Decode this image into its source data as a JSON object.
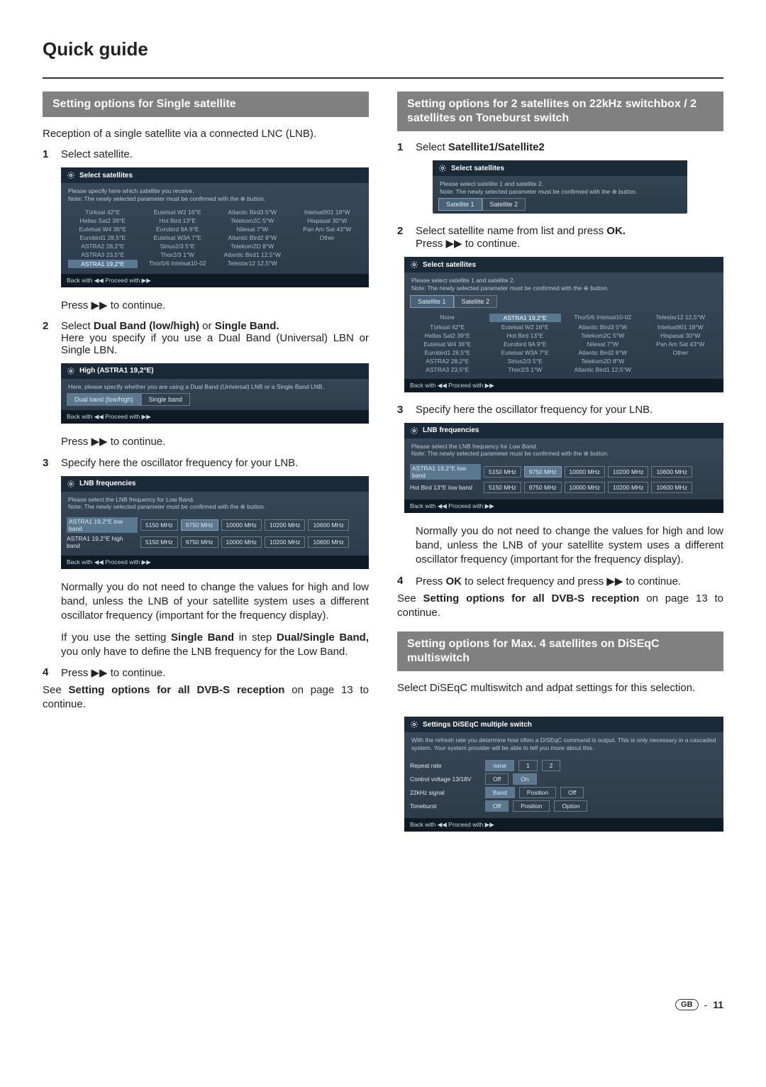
{
  "page": {
    "title": "Quick guide",
    "footer_gb": "GB",
    "footer_page": "11"
  },
  "left": {
    "header": "Setting options for Single satellite",
    "intro": "Reception of a single satellite via a connected LNC (LNB).",
    "s1_num": "1",
    "s1_text": "Select satellite.",
    "sat_panel": {
      "title": "Select satellites",
      "msg1": "Please specify here which satellite you receive.",
      "msg2": "Note: The newly selected parameter must be confirmed with the ⊕ button.",
      "foot": "Back with ◀◀   Proceed with ▶▶",
      "grid": [
        "Türksat 42°E",
        "Eutelsat W2 16°E",
        "Atlantic Bird3 5°W",
        "Intelsat901 18°W",
        "Hellas Sat2 39°E",
        "Hot Bird 13°E",
        "Telekom2C 5°W",
        "Hispasat 30°W",
        "Eutelsat W4 36°E",
        "Eurobird 9A 9°E",
        "Nilesat 7°W",
        "Pan Am Sat 43°W",
        "Eurobird1 28,5°E",
        "Eutelsat W3A 7°E",
        "Atlantic Bird2 8°W",
        "Other",
        "ASTRA2 28,2°E",
        "Sirius2/3 5°E",
        "Telekom2D 8°W",
        "",
        "ASTRA3 23,5°E",
        "Thor2/3 1°W",
        "Atlantic Bird1 12,5°W",
        "",
        "ASTRA1 19,2°E",
        "Thor5/6 Intelsat10-02",
        "Telestar12 12,5°W",
        ""
      ],
      "sel_index": 24
    },
    "press1": "Press ▶▶ to continue.",
    "s2_num": "2",
    "s2_a": "Select ",
    "s2_b": "Dual Band (low/high)",
    "s2_c": " or ",
    "s2_d": "Single Band.",
    "s2_cont": "Here you specify if you use a Dual Band (Universal) LBN or Single LBN.",
    "band_panel": {
      "title": "High (ASTRA1 19,2°E)",
      "msg": "Here, please specify whether you are using a Dual Band (Universal) LNB or a Single Band LNB.",
      "btn1": "Dual band (low/high)",
      "btn2": "Single band",
      "foot": "Back with ◀◀   Proceed with ▶▶"
    },
    "press2": "Press ▶▶ to continue.",
    "s3_num": "3",
    "s3_text": "Specify here the oscillator frequency for your LNB.",
    "lnb_panel": {
      "title": "LNB frequencies",
      "msg1": "Please select the LNB frequency for Low Band.",
      "msg2": "Note: The newly selected parameter must be confirmed with the ⊕ button.",
      "row1_label": "ASTRA1 19,2°E low band",
      "row2_label": "ASTRA1 19,2°E high band",
      "freqs": [
        "5150 MHz",
        "9750 MHz",
        "10000 MHz",
        "10200 MHz",
        "10600 MHz"
      ],
      "row1_sel": 1,
      "foot": "Back with ◀◀   Proceed with ▶▶"
    },
    "para_norm": "Normally you do not need to change the values for high and low band, unless the LNB of your satellite system uses a different oscillator frequency (important for the frequency display).",
    "para_if_a": "If you use the setting ",
    "para_if_b": "Single Band",
    "para_if_c": " in step ",
    "para_if_d": "Dual/Single Band,",
    "para_if_e": " you only have to define the LNB frequency for the Low Band.",
    "s4_num": "4",
    "s4_text": "Press ▶▶ to continue.",
    "see_a": "See ",
    "see_b": "Setting options for all DVB-S reception",
    "see_c": " on page 13 to continue."
  },
  "right": {
    "header": "Setting options for 2 satellites on 22kHz switchbox / 2 satellites on Toneburst switch",
    "s1_num": "1",
    "s1_a": "Select ",
    "s1_b": "Satellite1/Satellite2",
    "sat12_panel": {
      "title": "Select satellites",
      "msg1": "Please select satellite 1 and satellite 2.",
      "msg2": "Note: The newly selected parameter must be confirmed with the ⊕ button.",
      "tab1": "Satellite 1",
      "tab2": "Satellite 2"
    },
    "s2_num": "2",
    "s2_a": "Select satellite name from list and press ",
    "s2_b": "OK.",
    "s2_cont": "Press ▶▶ to continue.",
    "sat_full_panel": {
      "title": "Select satellites",
      "msg1": "Please select satellite 1 and satellite 2.",
      "msg2": "Note: The newly selected parameter must be confirmed with the ⊕ button.",
      "tab1": "Satellite 1",
      "tab2": "Satellite 2",
      "grid": [
        "None",
        "ASTRA1 19,2°E",
        "Thor5/6 Intelsat10-02",
        "Telestar12 12,5°W",
        "Türksat 42°E",
        "Eutelsat W2 16°E",
        "Atlantic Bird3 5°W",
        "Intelsat901 18°W",
        "Hellas Sat2 39°E",
        "Hot Bird 13°E",
        "Telekom2C 5°W",
        "Hispasat 30°W",
        "Eutelsat W4 36°E",
        "Eurobird 9A 9°E",
        "Nilesat 7°W",
        "Pan Am Sat 43°W",
        "Eurobird1 28,5°E",
        "Eutelsat W3A 7°E",
        "Atlantic Bird2 8°W",
        "Other",
        "ASTRA2 28,2°E",
        "Sirius2/3 5°E",
        "Telekom2D 8°W",
        "",
        "ASTRA3 23,5°E",
        "Thor2/3 1°W",
        "Atlantic Bird1 12,5°W",
        ""
      ],
      "sel_index": 1,
      "foot": "Back with ◀◀   Proceed with ▶▶"
    },
    "s3_num": "3",
    "s3_text": "Specify here the oscillator frequency for your LNB.",
    "lnb_panel": {
      "title": "LNB frequencies",
      "msg1": "Please select the LNB frequency for Low Band.",
      "msg2": "Note: The newly selected parameter must be confirmed with the ⊕ button.",
      "row1_label": "ASTRA1 19,2°E low band",
      "row2_label": "Hot Bird 13°E low band",
      "freqs": [
        "5150 MHz",
        "9750 MHz",
        "10000 MHz",
        "10200 MHz",
        "10600 MHz"
      ],
      "row1_sel": 1,
      "foot": "Back with ◀◀   Proceed with ▶▶"
    },
    "para_norm": "Normally you do not need to change the values for high and low band, unless the LNB of your satellite system uses a different oscillator frequency (important for the frequency display).",
    "s4_num": "4",
    "s4_a": "Press ",
    "s4_b": "OK",
    "s4_c": " to select frequency and press ▶▶ to continue.",
    "see_a": "See ",
    "see_b": "Setting options for all DVB-S reception",
    "see_c": " on page 13 to continue.",
    "header2": "Setting options for Max. 4 satellites on DiSEqC multiswitch",
    "para2": "Select DiSEqC multiswitch and adpat settings for this selection.",
    "diseqc_panel": {
      "title": "Settings DiSEqC multiple switch",
      "msg": "With the refresh rate you determine how often a DiSEqC command is output. This is only necessary in a cascaded system. Your system provider will be able to tell you more about this.",
      "rows": [
        {
          "label": "Repeat rate",
          "btns": [
            "none",
            "1",
            "2"
          ],
          "sel": 0
        },
        {
          "label": "Control voltage 13/18V",
          "btns": [
            "Off",
            "On"
          ],
          "sel": 1
        },
        {
          "label": "22kHz signal",
          "btns": [
            "Band",
            "Position",
            "Off"
          ],
          "sel": 0
        },
        {
          "label": "Toneburst",
          "btns": [
            "Off",
            "Position",
            "Option"
          ],
          "sel": 0
        }
      ],
      "foot": "Back with ◀◀   Proceed with ▶▶"
    }
  }
}
